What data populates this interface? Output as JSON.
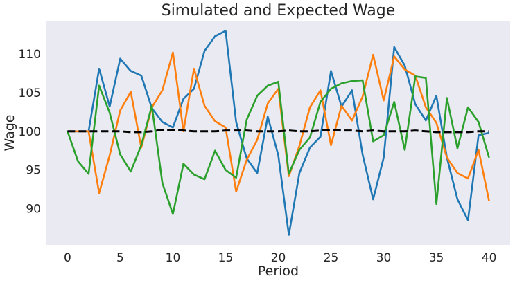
{
  "chart_data": {
    "type": "line",
    "title": "Simulated and Expected Wage",
    "xlabel": "Period",
    "ylabel": "Wage",
    "xlim": [
      -2,
      42
    ],
    "ylim": [
      85.3,
      114.3
    ],
    "xticks": [
      0,
      5,
      10,
      15,
      20,
      25,
      30,
      35,
      40
    ],
    "yticks": [
      90,
      95,
      100,
      105,
      110
    ],
    "grid": false,
    "background": "#eaeaf2",
    "x": [
      0,
      1,
      2,
      3,
      4,
      5,
      6,
      7,
      8,
      9,
      10,
      11,
      12,
      13,
      14,
      15,
      16,
      17,
      18,
      19,
      20,
      21,
      22,
      23,
      24,
      25,
      26,
      27,
      28,
      29,
      30,
      31,
      32,
      33,
      34,
      35,
      36,
      37,
      38,
      39,
      40
    ],
    "series": [
      {
        "color": "#1f77b4",
        "style": "solid",
        "values": [
          100.0,
          100.0,
          100.0,
          108.1,
          103.2,
          109.4,
          107.8,
          107.2,
          103.0,
          101.2,
          100.5,
          104.2,
          105.5,
          110.4,
          112.3,
          113.0,
          101.2,
          96.5,
          94.6,
          101.9,
          96.9,
          86.6,
          94.6,
          97.9,
          99.3,
          107.8,
          103.2,
          105.3,
          97.0,
          91.2,
          96.6,
          110.9,
          108.5,
          103.5,
          101.4,
          104.6,
          96.6,
          91.2,
          88.5,
          99.5,
          99.8
        ]
      },
      {
        "color": "#ff7f0e",
        "style": "solid",
        "values": [
          100.0,
          100.0,
          100.0,
          92.0,
          96.9,
          102.7,
          105.1,
          97.9,
          103.1,
          105.3,
          110.2,
          100.0,
          108.1,
          103.3,
          101.3,
          100.5,
          92.2,
          96.3,
          98.9,
          103.6,
          105.5,
          94.2,
          98.1,
          103.1,
          105.3,
          98.2,
          103.3,
          101.4,
          104.5,
          109.9,
          104.0,
          109.7,
          108.0,
          107.2,
          103.1,
          101.1,
          96.6,
          94.6,
          93.9,
          97.6,
          91.0
        ]
      },
      {
        "color": "#2ca02c",
        "style": "solid",
        "values": [
          100.0,
          96.1,
          94.5,
          105.9,
          102.4,
          97.0,
          94.8,
          98.2,
          103.3,
          93.3,
          89.3,
          95.8,
          94.4,
          93.8,
          97.5,
          95.0,
          94.0,
          101.5,
          104.6,
          105.9,
          106.4,
          94.5,
          97.6,
          99.2,
          103.8,
          105.5,
          106.2,
          106.5,
          106.6,
          98.7,
          99.5,
          103.8,
          97.6,
          107.1,
          106.9,
          90.6,
          104.3,
          97.8,
          103.1,
          101.2,
          96.6
        ]
      },
      {
        "color": "#000000",
        "style": "dashed",
        "values": [
          100.0,
          100.0,
          100.0,
          100.0,
          100.0,
          100.0,
          99.9,
          99.9,
          100.0,
          100.2,
          100.2,
          100.1,
          100.0,
          100.0,
          100.0,
          100.1,
          100.1,
          100.1,
          100.0,
          100.0,
          100.0,
          100.1,
          100.0,
          100.0,
          100.1,
          100.2,
          100.1,
          100.1,
          100.0,
          100.1,
          100.0,
          100.0,
          100.0,
          100.1,
          100.0,
          99.9,
          99.9,
          99.9,
          99.9,
          100.0,
          100.0
        ]
      }
    ]
  }
}
